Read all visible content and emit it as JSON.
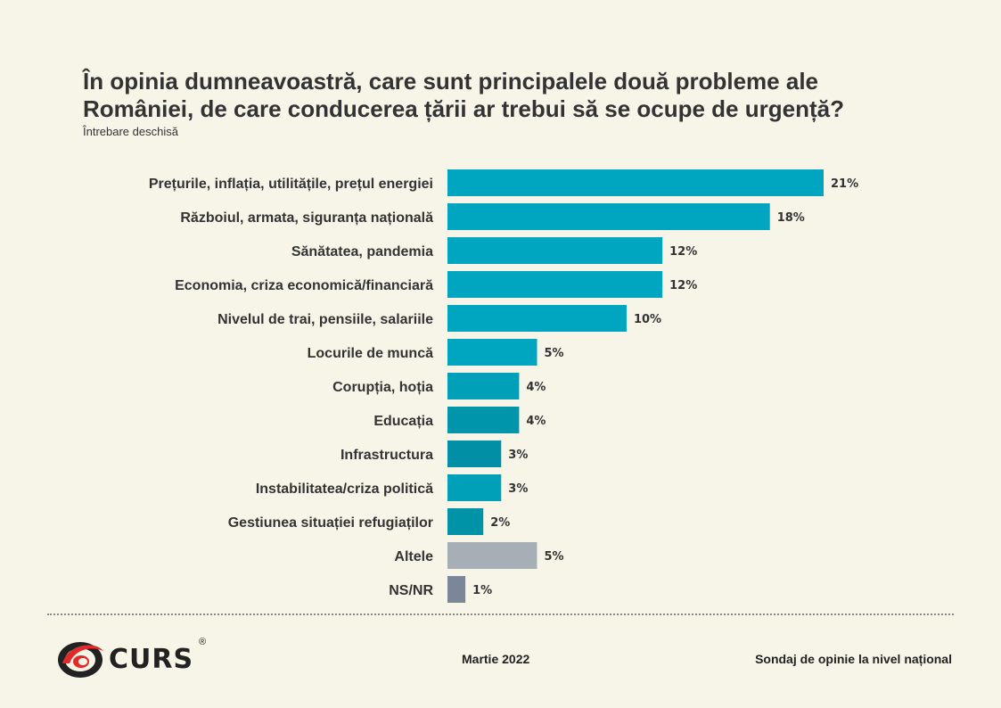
{
  "header": {
    "title": "În opinia dumneavoastră, care sunt principalele două probleme ale României, de care conducerea țării ar trebui să se ocupe de urgență?",
    "subtitle": "Întrebare deschisă"
  },
  "chart_data": {
    "type": "bar",
    "orientation": "horizontal",
    "title": "În opinia dumneavoastră, care sunt principalele două probleme ale României, de care conducerea țării ar trebui să se ocupe de urgență?",
    "subtitle": "Întrebare deschisă",
    "categories": [
      "Prețurile, inflația, utilitățile, prețul energiei",
      "Războiul, armata, siguranța națională",
      "Sănătatea, pandemia",
      "Economia, criza economică/financiară",
      "Nivelul de trai, pensiile, salariile",
      "Locurile de muncă",
      "Corupția, hoția",
      "Educația",
      "Infrastructura",
      "Instabilitatea/criza politică",
      "Gestiunea situației refugiaților",
      "Altele",
      "NS/NR"
    ],
    "values": [
      21,
      18,
      12,
      12,
      10,
      5,
      4,
      4,
      3,
      3,
      2,
      5,
      1
    ],
    "value_labels": [
      "21%",
      "18%",
      "12%",
      "12%",
      "10%",
      "5%",
      "4%",
      "4%",
      "3%",
      "3%",
      "2%",
      "5%",
      "1%"
    ],
    "colors": [
      "#00a5bf",
      "#00a5bf",
      "#00a5bf",
      "#00a5bf",
      "#00a5bf",
      "#00a5bf",
      "#00a0b8",
      "#0095ab",
      "#008fa5",
      "#00a0b8",
      "#0093a8",
      "#a6aeb6",
      "#7b8798"
    ],
    "xlim": [
      0,
      21
    ],
    "unit": "%",
    "grid": false,
    "legend": "none"
  },
  "footer": {
    "logo_text": "CURS",
    "logo_mark": "®",
    "date": "Martie 2022",
    "note": "Sondaj de opinie la nivel național"
  }
}
